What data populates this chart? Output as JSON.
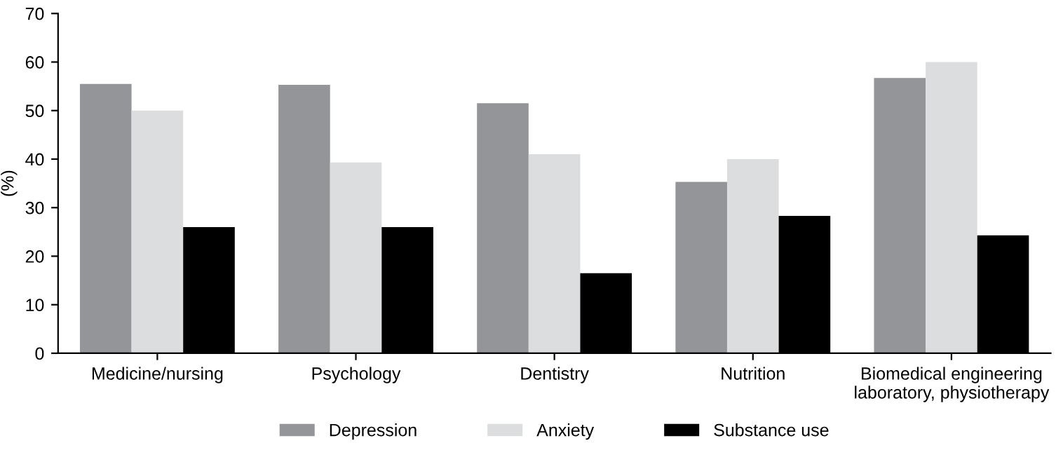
{
  "chart_data": {
    "type": "bar",
    "ylabel": "(%)",
    "categories": [
      "Medicine/nursing",
      "Psychology",
      "Dentistry",
      "Nutrition",
      "Biomedical engineering\nlaboratory, physiotherapy"
    ],
    "series": [
      {
        "name": "Depression",
        "color": "#939598",
        "values": [
          55.5,
          55.3,
          51.5,
          35.3,
          56.7
        ]
      },
      {
        "name": "Anxiety",
        "color": "#dcdddf",
        "values": [
          50,
          39.3,
          41,
          40,
          60
        ]
      },
      {
        "name": "Substance use",
        "color": "#000000",
        "values": [
          26,
          26,
          16.5,
          28.3,
          24.3
        ]
      }
    ],
    "ylim": [
      0,
      70
    ],
    "yticks": [
      0,
      10,
      20,
      30,
      40,
      50,
      60,
      70
    ],
    "grid": false,
    "legend": "bottom"
  }
}
